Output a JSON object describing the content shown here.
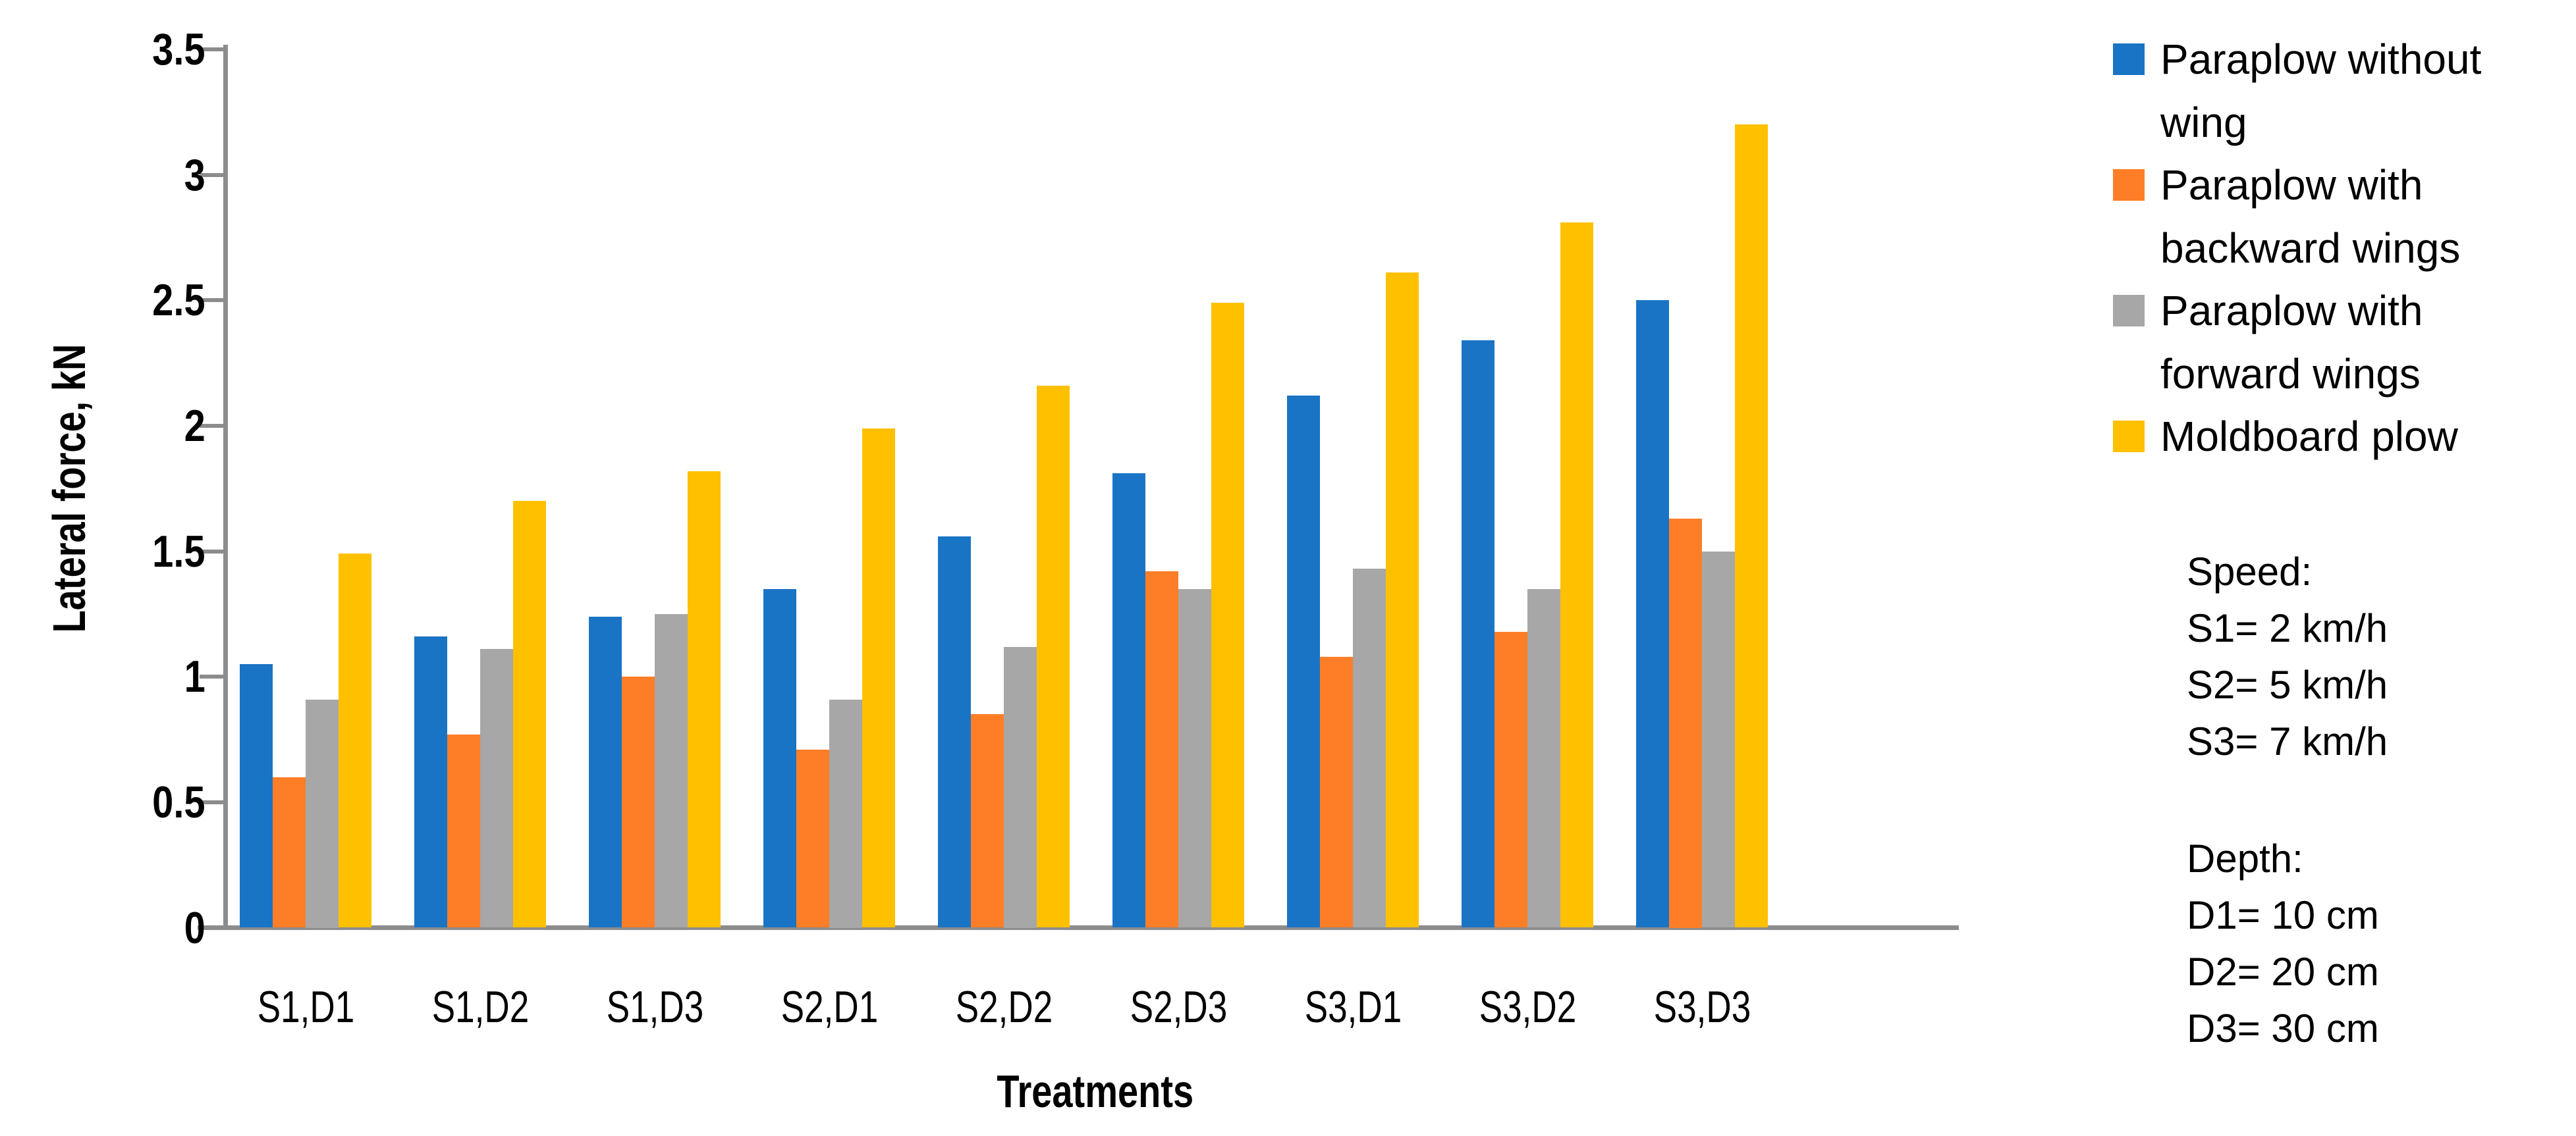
{
  "chart_data": {
    "type": "bar",
    "title": "",
    "xlabel": "Treatments",
    "ylabel": "Lateral force, kN",
    "ylim": [
      0,
      3.5
    ],
    "ytick_labels": [
      "0",
      "0.5",
      "1",
      "1.5",
      "2",
      "2.5",
      "3",
      "3.5"
    ],
    "ytick_values": [
      0,
      0.5,
      1,
      1.5,
      2,
      2.5,
      3,
      3.5
    ],
    "grid": false,
    "legend_position": "right",
    "categories": [
      "S1,D1",
      "S1,D2",
      "S1,D3",
      "S2,D1",
      "S2,D2",
      "S2,D3",
      "S3,D1",
      "S3,D2",
      "S3,D3"
    ],
    "series": [
      {
        "name": "Paraplow without wing",
        "legend_lines": [
          "Paraplow without",
          "wing"
        ],
        "color": "#1A74C5",
        "values": [
          1.05,
          1.16,
          1.24,
          1.35,
          1.56,
          1.81,
          2.12,
          2.34,
          2.5
        ]
      },
      {
        "name": "Paraplow with backward wings",
        "legend_lines": [
          "Paraplow with",
          "backward wings"
        ],
        "color": "#FD7E27",
        "values": [
          0.6,
          0.77,
          1.0,
          0.71,
          0.85,
          1.42,
          1.08,
          1.18,
          1.63
        ]
      },
      {
        "name": "Paraplow with forward wings",
        "legend_lines": [
          "Paraplow with",
          "forward wings"
        ],
        "color": "#A7A7A7",
        "values": [
          0.91,
          1.11,
          1.25,
          0.91,
          1.12,
          1.35,
          1.43,
          1.35,
          1.5
        ]
      },
      {
        "name": "Moldboard plow",
        "legend_lines": [
          "Moldboard plow"
        ],
        "color": "#FFC000",
        "values": [
          1.49,
          1.7,
          1.82,
          1.99,
          2.16,
          2.49,
          2.61,
          2.81,
          3.2
        ]
      }
    ]
  },
  "annotations": {
    "speed": {
      "title": "Speed:",
      "lines": [
        "S1= 2 km/h",
        "S2= 5 km/h",
        "S3= 7 km/h"
      ]
    },
    "depth": {
      "title": "Depth:",
      "lines": [
        "D1= 10 cm",
        "D2= 20 cm",
        "D3= 30 cm"
      ]
    }
  },
  "colors": {
    "axis": "#8C8C8C",
    "text": "#000000",
    "background": "#FFFFFF"
  }
}
